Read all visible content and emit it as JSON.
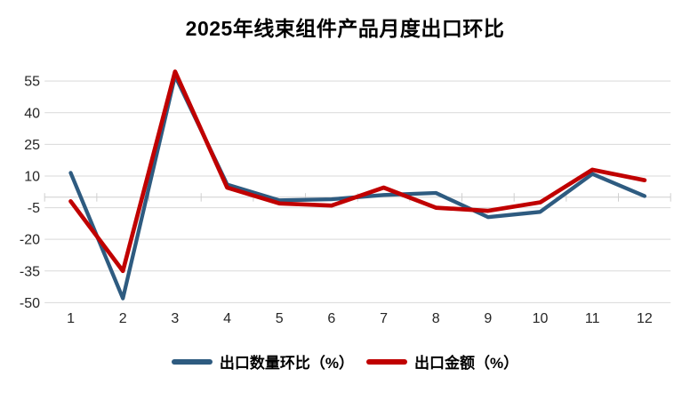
{
  "title": "2025年线束组件产品月度出口环比",
  "colors": {
    "series_quantity": "#2E5B80",
    "series_amount": "#C00000",
    "gridline": "#D9D9D9",
    "axis": "#CFCFCF",
    "tick_label": "#262626",
    "background": "#FFFFFF"
  },
  "legend": {
    "items": [
      {
        "label": "出口数量环比（%）",
        "series": "quantity"
      },
      {
        "label": "出口金额（%）",
        "series": "amount"
      }
    ]
  },
  "chart_data": {
    "type": "line",
    "title": "2025年线束组件产品月度出口环比",
    "categories": [
      1,
      2,
      3,
      4,
      5,
      6,
      7,
      8,
      9,
      10,
      11,
      12
    ],
    "series": [
      {
        "name": "出口数量环比（%）",
        "color": "#2E5B80",
        "values": [
          11.5,
          -48,
          57.5,
          6,
          -1.5,
          -1,
          1,
          2,
          -9.5,
          -7,
          11,
          0.5
        ]
      },
      {
        "name": "出口金额（%）",
        "color": "#C00000",
        "values": [
          -2,
          -35,
          59.5,
          4.5,
          -3,
          -4,
          4.5,
          -5,
          -6.5,
          -2.5,
          13,
          8
        ]
      }
    ],
    "xlabel": "",
    "ylabel": "",
    "ylim": [
      -50,
      55
    ],
    "yticks": [
      55,
      40,
      25,
      10,
      -5,
      -20,
      -35,
      -50
    ],
    "grid": true,
    "axis_cross_value": 0,
    "legend_position": "bottom"
  }
}
